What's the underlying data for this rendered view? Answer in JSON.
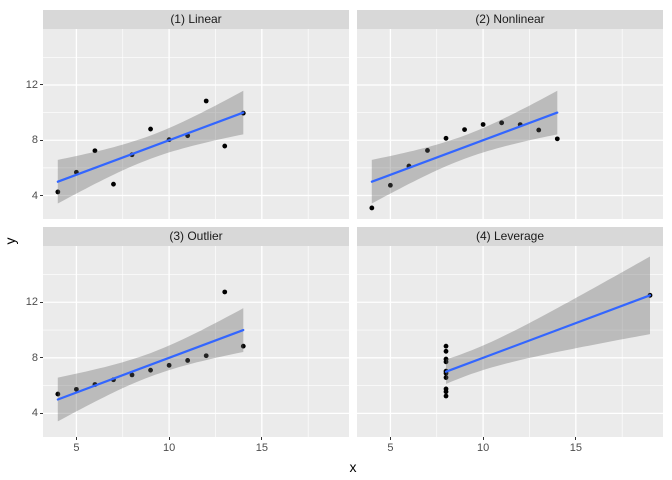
{
  "chart_data": {
    "type": "scatter",
    "title": "",
    "xlabel": "x",
    "ylabel": "y",
    "facets": [
      {
        "label": "(1) Linear",
        "x": [
          10,
          8,
          13,
          9,
          11,
          14,
          6,
          4,
          12,
          7,
          5
        ],
        "y": [
          8.04,
          6.95,
          7.58,
          8.81,
          8.33,
          9.96,
          7.24,
          4.26,
          10.84,
          4.82,
          5.68
        ]
      },
      {
        "label": "(2) Nonlinear",
        "x": [
          10,
          8,
          13,
          9,
          11,
          14,
          6,
          4,
          12,
          7,
          5
        ],
        "y": [
          9.14,
          8.14,
          8.74,
          8.77,
          9.26,
          8.1,
          6.13,
          3.1,
          9.13,
          7.26,
          4.74
        ]
      },
      {
        "label": "(3) Outlier",
        "x": [
          10,
          8,
          13,
          9,
          11,
          14,
          6,
          4,
          12,
          7,
          5
        ],
        "y": [
          7.46,
          6.77,
          12.74,
          7.11,
          7.81,
          8.84,
          6.08,
          5.39,
          8.15,
          6.42,
          5.73
        ]
      },
      {
        "label": "(4) Leverage",
        "x": [
          8,
          8,
          8,
          8,
          8,
          8,
          8,
          19,
          8,
          8,
          8
        ],
        "y": [
          6.58,
          5.76,
          7.71,
          8.84,
          8.47,
          7.04,
          5.25,
          12.5,
          5.56,
          7.91,
          6.89
        ]
      }
    ],
    "xlim": [
      3.2,
      19.7
    ],
    "ylim": [
      2.3,
      16.05
    ],
    "x_ticks": [
      5,
      10,
      15
    ],
    "y_ticks": [
      4,
      8,
      12
    ],
    "x_minor": [
      7.5,
      12.5,
      17.5
    ],
    "y_minor": [
      6,
      10,
      14
    ],
    "legend_position": "none",
    "grid": true,
    "smooth": {
      "method": "lm",
      "level": 0.95,
      "t_mult": 2.262
    },
    "colors": {
      "panel_bg": "#ebebeb",
      "grid_major": "#ffffff",
      "grid_minor": "#ffffff",
      "strip_bg": "#d8d8d8",
      "strip_text": "#1a1a1a",
      "axis_text": "#4d4d4d",
      "axis_title": "#000000",
      "point": "#000000",
      "smooth_line": "#3366ff",
      "ribbon": "rgba(96,96,96,0.35)"
    }
  }
}
